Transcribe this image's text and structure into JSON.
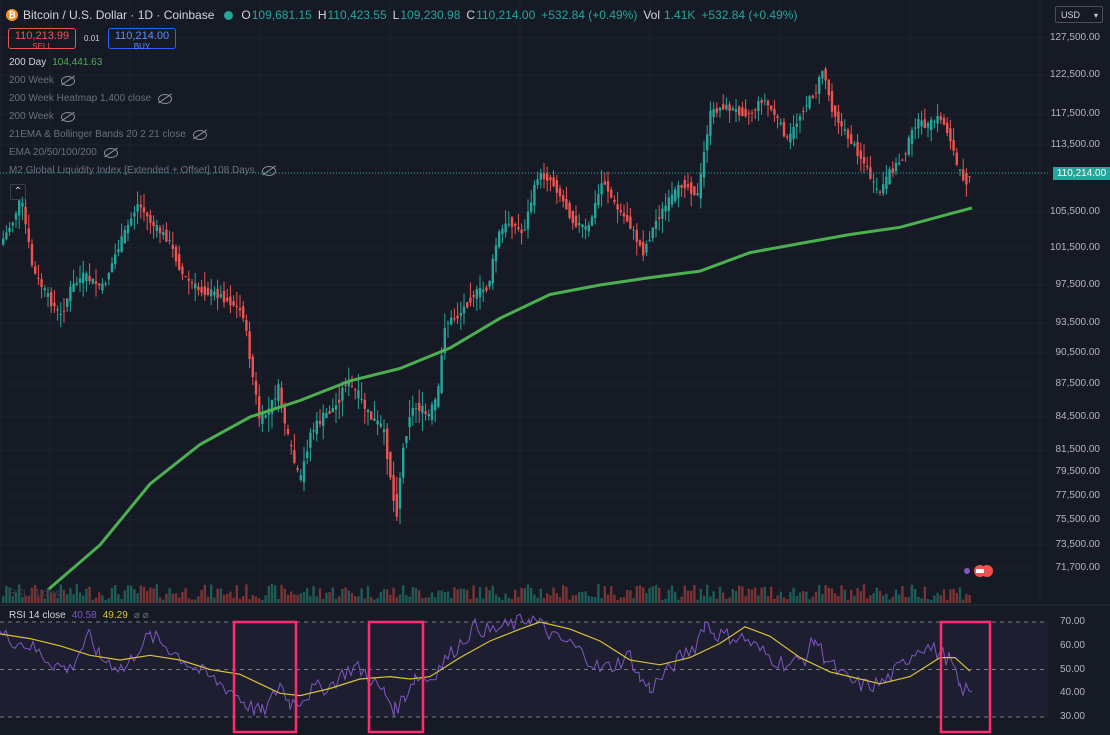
{
  "header": {
    "symbol": "Bitcoin / U.S. Dollar · 1D · Coinbase",
    "open_label": "O",
    "open": "109,681.15",
    "high_label": "H",
    "high": "110,423.55",
    "low_label": "L",
    "low": "109,230.98",
    "close_label": "C",
    "close": "110,214.00",
    "change": "+532.84 (+0.49%)",
    "vol_label": "Vol",
    "vol": "1.41K",
    "vol_change": "+532.84 (+0.49%)"
  },
  "trade": {
    "sell_price": "110,213.99",
    "sell_label": "SELL",
    "spread": "0.01",
    "buy_price": "110,214.00",
    "buy_label": "BUY"
  },
  "indicators": {
    "ma200_label": "200 Day",
    "ma200_value": "104,441.63",
    "items": [
      "200 Week",
      "200 Week Heatmap 1,400 close",
      "200 Week",
      "21EMA & Bollinger Bands 20 2 21 close",
      "EMA 20/50/100/200",
      "M2 Global Liquidity Index [Extended + Offset] 108 Days"
    ]
  },
  "currency": "USD",
  "collapse_icon": "chevron-up-icon",
  "price_axis": [
    "127,500.00",
    "122,500.00",
    "117,500.00",
    "113,500.00",
    "110,214.00",
    "105,500.00",
    "101,500.00",
    "97,500.00",
    "93,500.00",
    "90,500.00",
    "87,500.00",
    "84,500.00",
    "81,500.00",
    "79,500.00",
    "77,500.00",
    "75,500.00",
    "73,500.00",
    "71,700.00"
  ],
  "current_price": "110,214.00",
  "rsi": {
    "ghost_label": "RSI 14 close",
    "label": "RSI 14 close",
    "value": "40.58",
    "ma_value": "49.29",
    "icons": "⌀ ⌀",
    "axis": [
      "70.00",
      "60.00",
      "50.00",
      "40.00",
      "30.00"
    ]
  },
  "colors": {
    "up": "#26a69a",
    "down": "#ef5350",
    "ma200": "#4caf50",
    "rsi": "#7e57c2",
    "rsi_ma": "#d6c237",
    "highlight": "#ff2d6f",
    "bg": "#161a25"
  },
  "chart_data": [
    {
      "type": "candlestick",
      "title": "Bitcoin / U.S. Dollar · 1D · Coinbase",
      "ylim": [
        70000,
        130000
      ],
      "y_ticks": [
        127500,
        122500,
        117500,
        113500,
        105500,
        101500,
        97500,
        93500,
        90500,
        87500,
        84500,
        81500,
        79500,
        77500,
        75500,
        73500,
        71700
      ],
      "path": [
        [
          0,
          101500
        ],
        [
          15,
          104500
        ],
        [
          23,
          107200
        ],
        [
          35,
          99000
        ],
        [
          50,
          96200
        ],
        [
          63,
          94200
        ],
        [
          72,
          97000
        ],
        [
          85,
          98500
        ],
        [
          105,
          97200
        ],
        [
          118,
          101000
        ],
        [
          140,
          106500
        ],
        [
          155,
          104000
        ],
        [
          170,
          102500
        ],
        [
          185,
          98500
        ],
        [
          200,
          97000
        ],
        [
          220,
          96500
        ],
        [
          235,
          95500
        ],
        [
          245,
          94500
        ],
        [
          255,
          88000
        ],
        [
          262,
          84000
        ],
        [
          273,
          85500
        ],
        [
          280,
          87200
        ],
        [
          290,
          82500
        ],
        [
          302,
          78500
        ],
        [
          312,
          83000
        ],
        [
          325,
          84500
        ],
        [
          338,
          85500
        ],
        [
          348,
          87800
        ],
        [
          360,
          86500
        ],
        [
          372,
          84500
        ],
        [
          385,
          83500
        ],
        [
          392,
          79500
        ],
        [
          398,
          75500
        ],
        [
          404,
          81000
        ],
        [
          412,
          85000
        ],
        [
          420,
          85500
        ],
        [
          430,
          84500
        ],
        [
          440,
          86500
        ],
        [
          447,
          93500
        ],
        [
          460,
          94200
        ],
        [
          475,
          96500
        ],
        [
          490,
          97200
        ],
        [
          500,
          103000
        ],
        [
          512,
          104500
        ],
        [
          525,
          103000
        ],
        [
          540,
          110000
        ],
        [
          552,
          109500
        ],
        [
          560,
          108000
        ],
        [
          575,
          104500
        ],
        [
          590,
          103500
        ],
        [
          605,
          109500
        ],
        [
          618,
          106000
        ],
        [
          630,
          104500
        ],
        [
          645,
          101000
        ],
        [
          658,
          104500
        ],
        [
          672,
          107000
        ],
        [
          685,
          109000
        ],
        [
          700,
          107500
        ],
        [
          712,
          117500
        ],
        [
          725,
          118500
        ],
        [
          740,
          117800
        ],
        [
          752,
          117500
        ],
        [
          765,
          119500
        ],
        [
          778,
          117200
        ],
        [
          790,
          114000
        ],
        [
          805,
          118200
        ],
        [
          818,
          120500
        ],
        [
          825,
          123500
        ],
        [
          833,
          118500
        ],
        [
          845,
          115500
        ],
        [
          858,
          113000
        ],
        [
          868,
          111000
        ],
        [
          880,
          107500
        ],
        [
          893,
          110500
        ],
        [
          905,
          112000
        ],
        [
          918,
          116500
        ],
        [
          930,
          116000
        ],
        [
          942,
          117200
        ],
        [
          952,
          114500
        ],
        [
          960,
          110500
        ],
        [
          968,
          109200
        ],
        [
          972,
          110214
        ]
      ],
      "ma200_path": [
        [
          48,
          70000
        ],
        [
          100,
          73500
        ],
        [
          150,
          78500
        ],
        [
          200,
          82000
        ],
        [
          250,
          84500
        ],
        [
          300,
          86000
        ],
        [
          350,
          87800
        ],
        [
          400,
          89000
        ],
        [
          450,
          91000
        ],
        [
          500,
          94000
        ],
        [
          550,
          96500
        ],
        [
          600,
          97500
        ],
        [
          650,
          98300
        ],
        [
          700,
          99000
        ],
        [
          750,
          101000
        ],
        [
          800,
          102000
        ],
        [
          850,
          103000
        ],
        [
          900,
          103800
        ],
        [
          950,
          105300
        ],
        [
          972,
          106000
        ]
      ],
      "ma200_value": 104441.63,
      "current_price": 110214.0
    },
    {
      "type": "line",
      "title": "RSI 14 close",
      "ylim": [
        25,
        75
      ],
      "y_ticks": [
        70,
        60,
        50,
        40,
        30
      ],
      "series": [
        {
          "values_x": [
            0,
            15,
            30,
            45,
            55,
            70,
            80,
            90,
            100,
            115,
            125,
            140,
            150,
            160,
            175,
            190,
            205,
            220,
            235,
            245,
            255,
            262,
            270,
            280,
            290,
            300,
            315,
            330,
            345,
            355,
            365,
            375,
            385,
            395,
            405,
            415,
            430,
            445,
            460,
            475,
            490,
            505,
            520,
            530,
            540,
            555,
            570,
            585,
            600,
            615,
            630,
            640,
            650,
            665,
            680,
            695,
            705,
            715,
            730,
            745,
            760,
            775,
            790,
            805,
            815,
            825,
            840,
            855,
            870,
            885,
            900,
            915,
            925,
            940,
            950,
            960,
            972
          ],
          "values": [
            65,
            62,
            60,
            55,
            52,
            50,
            58,
            64,
            55,
            52,
            50,
            60,
            64,
            62,
            57,
            52,
            48,
            44,
            40,
            36,
            33,
            32,
            36,
            44,
            36,
            37,
            42,
            43,
            49,
            51,
            49,
            44,
            40,
            33,
            39,
            47,
            46,
            54,
            61,
            68,
            66,
            68,
            70,
            72,
            69,
            63,
            61,
            56,
            50,
            52,
            56,
            46,
            42,
            48,
            55,
            60,
            70,
            65,
            64,
            63,
            58,
            54,
            52,
            55,
            63,
            55,
            48,
            44,
            43,
            45,
            51,
            58,
            60,
            57,
            54,
            42,
            40.58
          ]
        },
        {
          "values_x": [
            0,
            30,
            60,
            90,
            120,
            150,
            180,
            210,
            240,
            260,
            280,
            300,
            330,
            360,
            390,
            410,
            430,
            460,
            490,
            520,
            540,
            570,
            600,
            630,
            660,
            690,
            720,
            745,
            770,
            800,
            830,
            860,
            880,
            910,
            940,
            955,
            970
          ],
          "values": [
            65,
            63,
            60,
            56,
            54,
            56,
            54,
            50,
            48,
            44,
            40,
            39,
            42,
            46,
            47,
            46,
            47,
            55,
            62,
            67,
            70,
            67,
            62,
            54,
            52,
            55,
            61,
            68,
            64,
            55,
            49,
            46,
            44,
            47,
            55,
            55,
            49.29
          ]
        }
      ],
      "highlight_ranges": [
        [
          234,
          296
        ],
        [
          369,
          423
        ],
        [
          941,
          990
        ]
      ],
      "value": 40.58,
      "ma_value": 49.29
    }
  ]
}
